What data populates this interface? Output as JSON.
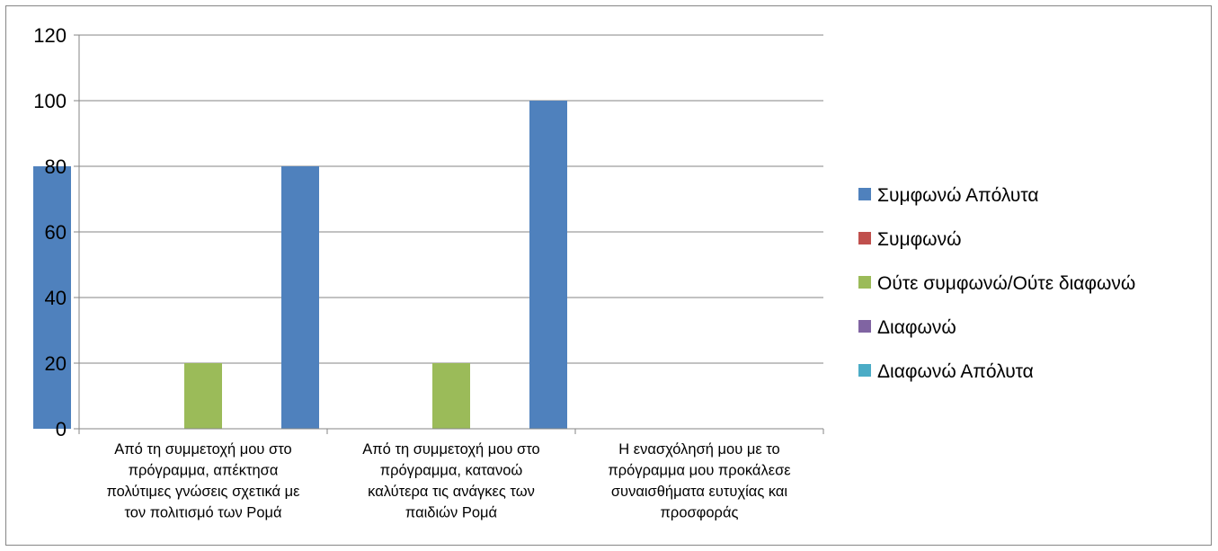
{
  "chart_data": {
    "type": "bar",
    "title": "",
    "xlabel": "",
    "ylabel": "",
    "ylim": [
      0,
      120
    ],
    "yticks": [
      0,
      20,
      40,
      60,
      80,
      100,
      120
    ],
    "grid": true,
    "legend_position": "right",
    "categories": [
      [
        "Από τη συμμετοχή μου στο",
        "πρόγραμμα, απέκτησα",
        "πολύτιμες γνώσεις σχετικά με",
        "τον πολιτισμό των Ρομά"
      ],
      [
        "Από τη συμμετοχή μου στο",
        "πρόγραμμα, κατανοώ",
        "καλύτερα τις ανάγκες των",
        "παιδιών Ρομά"
      ],
      [
        "Η ενασχόλησή μου με το",
        "πρόγραμμα μου προκάλεσε",
        "συναισθήματα ευτυχίας και",
        "προσφοράς"
      ]
    ],
    "series": [
      {
        "name": "Συμφωνώ Απόλυτα",
        "color": "#4F81BD",
        "values": [
          80,
          80,
          100
        ]
      },
      {
        "name": "Συμφωνώ",
        "color": "#C0504D",
        "values": [
          0,
          0,
          0
        ]
      },
      {
        "name": "Ούτε συμφωνώ/Ούτε διαφωνώ",
        "color": "#9BBB59",
        "values": [
          20,
          20,
          0
        ]
      },
      {
        "name": "Διαφωνώ",
        "color": "#8064A2",
        "values": [
          0,
          0,
          0
        ]
      },
      {
        "name": "Διαφωνώ Απόλυτα",
        "color": "#4BACC6",
        "values": [
          0,
          0,
          0
        ]
      }
    ]
  }
}
